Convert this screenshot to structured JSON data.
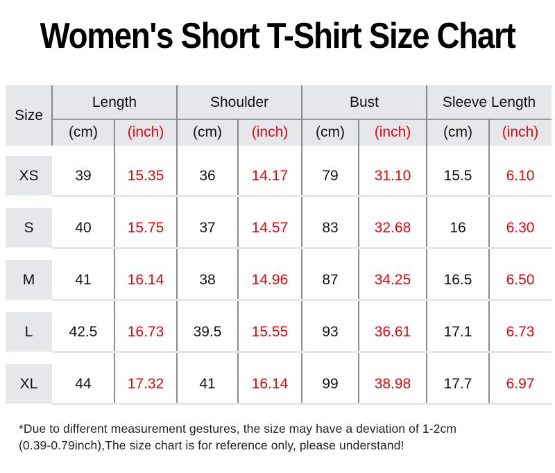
{
  "title": "Women's Short T-Shirt Size Chart",
  "colors": {
    "header_bg": "#e6e7eb",
    "inch_text": "#e0060f",
    "cm_text": "#111111",
    "divider": "#8a8a8a"
  },
  "table": {
    "size_header": "Size",
    "groups": [
      {
        "label": "Length",
        "units": [
          "(cm)",
          "(inch)"
        ]
      },
      {
        "label": "Shoulder",
        "units": [
          "(cm)",
          "(inch)"
        ]
      },
      {
        "label": "Bust",
        "units": [
          "(cm)",
          "(inch)"
        ]
      },
      {
        "label": "Sleeve Length",
        "units": [
          "(cm)",
          "(inch)"
        ]
      }
    ],
    "rows": [
      {
        "size": "XS",
        "values": [
          "39",
          "15.35",
          "36",
          "14.17",
          "79",
          "31.10",
          "15.5",
          "6.10"
        ]
      },
      {
        "size": "S",
        "values": [
          "40",
          "15.75",
          "37",
          "14.57",
          "83",
          "32.68",
          "16",
          "6.30"
        ]
      },
      {
        "size": "M",
        "values": [
          "41",
          "16.14",
          "38",
          "14.96",
          "87",
          "34.25",
          "16.5",
          "6.50"
        ]
      },
      {
        "size": "L",
        "values": [
          "42.5",
          "16.73",
          "39.5",
          "15.55",
          "93",
          "36.61",
          "17.1",
          "6.73"
        ]
      },
      {
        "size": "XL",
        "values": [
          "44",
          "17.32",
          "41",
          "16.14",
          "99",
          "38.98",
          "17.7",
          "6.97"
        ]
      }
    ]
  },
  "note": {
    "line1": "*Due to different measurement gestures, the size may have a deviation of 1-2cm",
    "line2": "(0.39-0.79inch),The size chart is for reference only, please understand!"
  }
}
